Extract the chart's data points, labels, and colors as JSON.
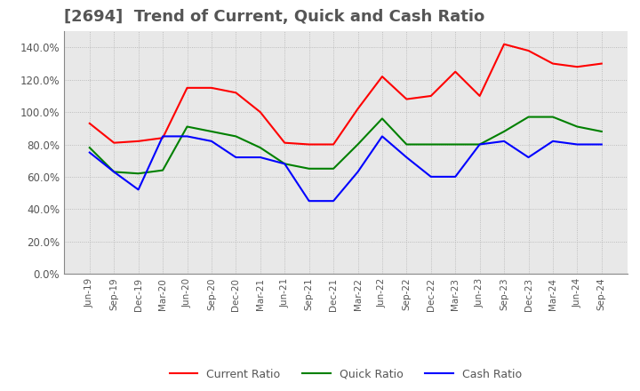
{
  "title": "[2694]  Trend of Current, Quick and Cash Ratio",
  "x_labels": [
    "Jun-19",
    "Sep-19",
    "Dec-19",
    "Mar-20",
    "Jun-20",
    "Sep-20",
    "Dec-20",
    "Mar-21",
    "Jun-21",
    "Sep-21",
    "Dec-21",
    "Mar-22",
    "Jun-22",
    "Sep-22",
    "Dec-22",
    "Mar-23",
    "Jun-23",
    "Sep-23",
    "Dec-23",
    "Mar-24",
    "Jun-24",
    "Sep-24"
  ],
  "current_ratio": [
    93,
    81,
    82,
    84,
    115,
    115,
    112,
    100,
    81,
    80,
    80,
    102,
    122,
    108,
    110,
    125,
    110,
    142,
    138,
    130,
    128,
    130
  ],
  "quick_ratio": [
    78,
    63,
    62,
    64,
    91,
    88,
    85,
    78,
    68,
    65,
    65,
    80,
    96,
    80,
    80,
    80,
    80,
    88,
    97,
    97,
    91,
    88
  ],
  "cash_ratio": [
    75,
    63,
    52,
    85,
    85,
    82,
    72,
    72,
    68,
    45,
    45,
    63,
    85,
    72,
    60,
    60,
    80,
    82,
    72,
    82,
    80,
    80
  ],
  "current_color": "#FF0000",
  "quick_color": "#008000",
  "cash_color": "#0000FF",
  "ylim": [
    0,
    150
  ],
  "yticks": [
    0,
    20,
    40,
    60,
    80,
    100,
    120,
    140
  ],
  "bg_color": "#ffffff",
  "plot_bg_color": "#e8e8e8",
  "grid_color": "#aaaaaa",
  "title_color": "#555555",
  "title_fontsize": 13,
  "legend_labels": [
    "Current Ratio",
    "Quick Ratio",
    "Cash Ratio"
  ]
}
